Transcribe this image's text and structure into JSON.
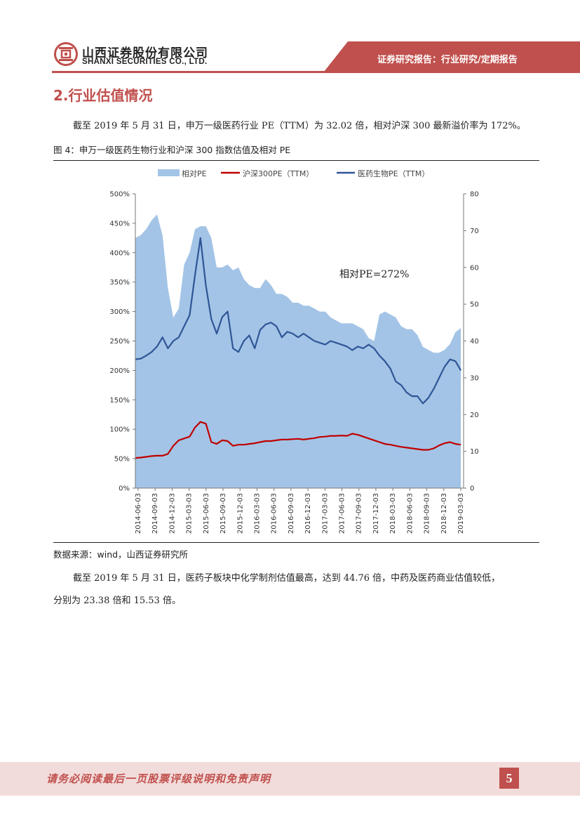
{
  "header": {
    "company_cn": "山西证券股份有限公司",
    "company_en": "SHANXI SECURITIES CO., LTD.",
    "report_type": "证券研究报告：行业研究/定期报告"
  },
  "section": {
    "title": "2.行业估值情况"
  },
  "paragraph1": "截至 2019 年 5 月 31 日，申万一级医药行业 PE（TTM）为 32.02 倍，相对沪深 300 最新溢价率为 172%。",
  "figure": {
    "title": "图 4：申万一级医药生物行业和沪深 300 指数估值及相对 PE",
    "source": "数据来源：wind，山西证券研究所"
  },
  "paragraph2_line1": "截至 2019 年 5 月 31 日，医药子板块中化学制剂估值最高，达到 44.76 倍，中药及医药商业估值较低，",
  "paragraph2_line2": "分别为 23.38 倍和 15.53 倍。",
  "footer": {
    "disclaimer": "请务必阅读最后一页股票评级说明和免责声明",
    "page": "5"
  },
  "chart_data": {
    "type": "area",
    "title": "",
    "annotation": "相对PE=272%",
    "legend": [
      "相对PE",
      "沪深300PE（TTM）",
      "医药生物PE（TTM）"
    ],
    "colors": {
      "relative_pe": "#a3c4e6",
      "hs300": "#c00000",
      "pharma": "#2f5597"
    },
    "x_ticks": [
      "2014-06-03",
      "2014-09-03",
      "2014-12-03",
      "2015-03-03",
      "2015-06-03",
      "2015-09-03",
      "2015-12-03",
      "2016-03-03",
      "2016-06-03",
      "2016-09-03",
      "2016-12-03",
      "2017-03-03",
      "2017-06-03",
      "2017-09-03",
      "2017-12-03",
      "2018-03-03",
      "2018-06-03",
      "2018-09-03",
      "2018-12-03",
      "2019-03-03"
    ],
    "y_left": {
      "ticks": [
        "0%",
        "50%",
        "100%",
        "150%",
        "200%",
        "250%",
        "300%",
        "350%",
        "400%",
        "450%",
        "500%"
      ],
      "range": [
        0,
        500
      ]
    },
    "y_right": {
      "ticks": [
        "0",
        "10",
        "20",
        "30",
        "40",
        "50",
        "60",
        "70",
        "80"
      ],
      "range": [
        0,
        80
      ]
    },
    "x_range": [
      0,
      60.5
    ],
    "series": [
      {
        "name": "相对PE",
        "axis": "left",
        "unit": "%",
        "points": [
          [
            0,
            425
          ],
          [
            1,
            430
          ],
          [
            2,
            440
          ],
          [
            3,
            455
          ],
          [
            4,
            465
          ],
          [
            5,
            430
          ],
          [
            6,
            340
          ],
          [
            7,
            290
          ],
          [
            8,
            305
          ],
          [
            9,
            380
          ],
          [
            10,
            400
          ],
          [
            11,
            440
          ],
          [
            12,
            445
          ],
          [
            13,
            445
          ],
          [
            14,
            425
          ],
          [
            15,
            375
          ],
          [
            16,
            375
          ],
          [
            17,
            380
          ],
          [
            18,
            370
          ],
          [
            19,
            375
          ],
          [
            20,
            355
          ],
          [
            21,
            345
          ],
          [
            22,
            340
          ],
          [
            23,
            340
          ],
          [
            24,
            355
          ],
          [
            25,
            345
          ],
          [
            26,
            330
          ],
          [
            27,
            330
          ],
          [
            28,
            325
          ],
          [
            29,
            315
          ],
          [
            30,
            315
          ],
          [
            31,
            310
          ],
          [
            32,
            310
          ],
          [
            33,
            305
          ],
          [
            34,
            300
          ],
          [
            35,
            300
          ],
          [
            36,
            290
          ],
          [
            37,
            285
          ],
          [
            38,
            280
          ],
          [
            39,
            280
          ],
          [
            40,
            280
          ],
          [
            41,
            275
          ],
          [
            42,
            270
          ],
          [
            43,
            255
          ],
          [
            44,
            250
          ],
          [
            45,
            295
          ],
          [
            46,
            300
          ],
          [
            47,
            295
          ],
          [
            48,
            290
          ],
          [
            49,
            275
          ],
          [
            50,
            270
          ],
          [
            51,
            270
          ],
          [
            52,
            260
          ],
          [
            53,
            240
          ],
          [
            54,
            235
          ],
          [
            55,
            230
          ],
          [
            56,
            230
          ],
          [
            57,
            235
          ],
          [
            58,
            245
          ],
          [
            59,
            265
          ],
          [
            60,
            272
          ]
        ]
      },
      {
        "name": "沪深300PE（TTM）",
        "axis": "right",
        "unit": "x",
        "points": [
          [
            0,
            8.2
          ],
          [
            1,
            8.3
          ],
          [
            2,
            8.5
          ],
          [
            3,
            8.7
          ],
          [
            4,
            8.8
          ],
          [
            5,
            8.8
          ],
          [
            6,
            9.3
          ],
          [
            7,
            11.5
          ],
          [
            8,
            13.0
          ],
          [
            9,
            13.5
          ],
          [
            10,
            14.0
          ],
          [
            11,
            16.5
          ],
          [
            12,
            18.0
          ],
          [
            13,
            17.5
          ],
          [
            14,
            12.5
          ],
          [
            15,
            12.0
          ],
          [
            16,
            13.0
          ],
          [
            17,
            12.8
          ],
          [
            18,
            11.5
          ],
          [
            19,
            11.8
          ],
          [
            20,
            11.8
          ],
          [
            21,
            12.0
          ],
          [
            22,
            12.2
          ],
          [
            23,
            12.5
          ],
          [
            24,
            12.8
          ],
          [
            25,
            12.8
          ],
          [
            26,
            13.0
          ],
          [
            27,
            13.2
          ],
          [
            28,
            13.2
          ],
          [
            29,
            13.3
          ],
          [
            30,
            13.4
          ],
          [
            31,
            13.2
          ],
          [
            32,
            13.4
          ],
          [
            33,
            13.6
          ],
          [
            34,
            13.9
          ],
          [
            35,
            14.0
          ],
          [
            36,
            14.2
          ],
          [
            37,
            14.2
          ],
          [
            38,
            14.3
          ],
          [
            39,
            14.2
          ],
          [
            40,
            14.8
          ],
          [
            41,
            14.5
          ],
          [
            42,
            14.0
          ],
          [
            43,
            13.5
          ],
          [
            44,
            13.0
          ],
          [
            45,
            12.5
          ],
          [
            46,
            12.0
          ],
          [
            47,
            11.8
          ],
          [
            48,
            11.5
          ],
          [
            49,
            11.2
          ],
          [
            50,
            11.0
          ],
          [
            51,
            10.8
          ],
          [
            52,
            10.6
          ],
          [
            53,
            10.4
          ],
          [
            54,
            10.4
          ],
          [
            55,
            10.8
          ],
          [
            56,
            11.6
          ],
          [
            57,
            12.2
          ],
          [
            58,
            12.5
          ],
          [
            59,
            12.0
          ],
          [
            60,
            11.8
          ]
        ]
      },
      {
        "name": "医药生物PE（TTM）",
        "axis": "right",
        "unit": "x",
        "points": [
          [
            0,
            35.0
          ],
          [
            1,
            35.2
          ],
          [
            2,
            36.0
          ],
          [
            3,
            37.0
          ],
          [
            4,
            38.5
          ],
          [
            5,
            41.0
          ],
          [
            6,
            38.0
          ],
          [
            7,
            40.0
          ],
          [
            8,
            41.0
          ],
          [
            9,
            44.0
          ],
          [
            10,
            47.0
          ],
          [
            11,
            58.0
          ],
          [
            12,
            68.0
          ],
          [
            13,
            55.0
          ],
          [
            14,
            46.0
          ],
          [
            15,
            42.0
          ],
          [
            16,
            46.5
          ],
          [
            17,
            48.0
          ],
          [
            18,
            38.0
          ],
          [
            19,
            37.0
          ],
          [
            20,
            40.0
          ],
          [
            21,
            41.5
          ],
          [
            22,
            38.0
          ],
          [
            23,
            43.0
          ],
          [
            24,
            44.5
          ],
          [
            25,
            45.0
          ],
          [
            26,
            44.0
          ],
          [
            27,
            41.0
          ],
          [
            28,
            42.5
          ],
          [
            29,
            42.0
          ],
          [
            30,
            41.0
          ],
          [
            31,
            42.0
          ],
          [
            32,
            41.0
          ],
          [
            33,
            40.0
          ],
          [
            34,
            39.5
          ],
          [
            35,
            39.0
          ],
          [
            36,
            40.0
          ],
          [
            37,
            39.5
          ],
          [
            38,
            39.0
          ],
          [
            39,
            38.5
          ],
          [
            40,
            37.5
          ],
          [
            41,
            38.5
          ],
          [
            42,
            38.0
          ],
          [
            43,
            39.0
          ],
          [
            44,
            38.0
          ],
          [
            45,
            36.0
          ],
          [
            46,
            34.5
          ],
          [
            47,
            32.5
          ],
          [
            48,
            29.0
          ],
          [
            49,
            28.0
          ],
          [
            50,
            26.0
          ],
          [
            51,
            25.0
          ],
          [
            52,
            25.0
          ],
          [
            53,
            23.0
          ],
          [
            54,
            24.5
          ],
          [
            55,
            27.0
          ],
          [
            56,
            30.0
          ],
          [
            57,
            33.0
          ],
          [
            58,
            35.0
          ],
          [
            59,
            34.5
          ],
          [
            60,
            32.0
          ]
        ]
      }
    ]
  }
}
